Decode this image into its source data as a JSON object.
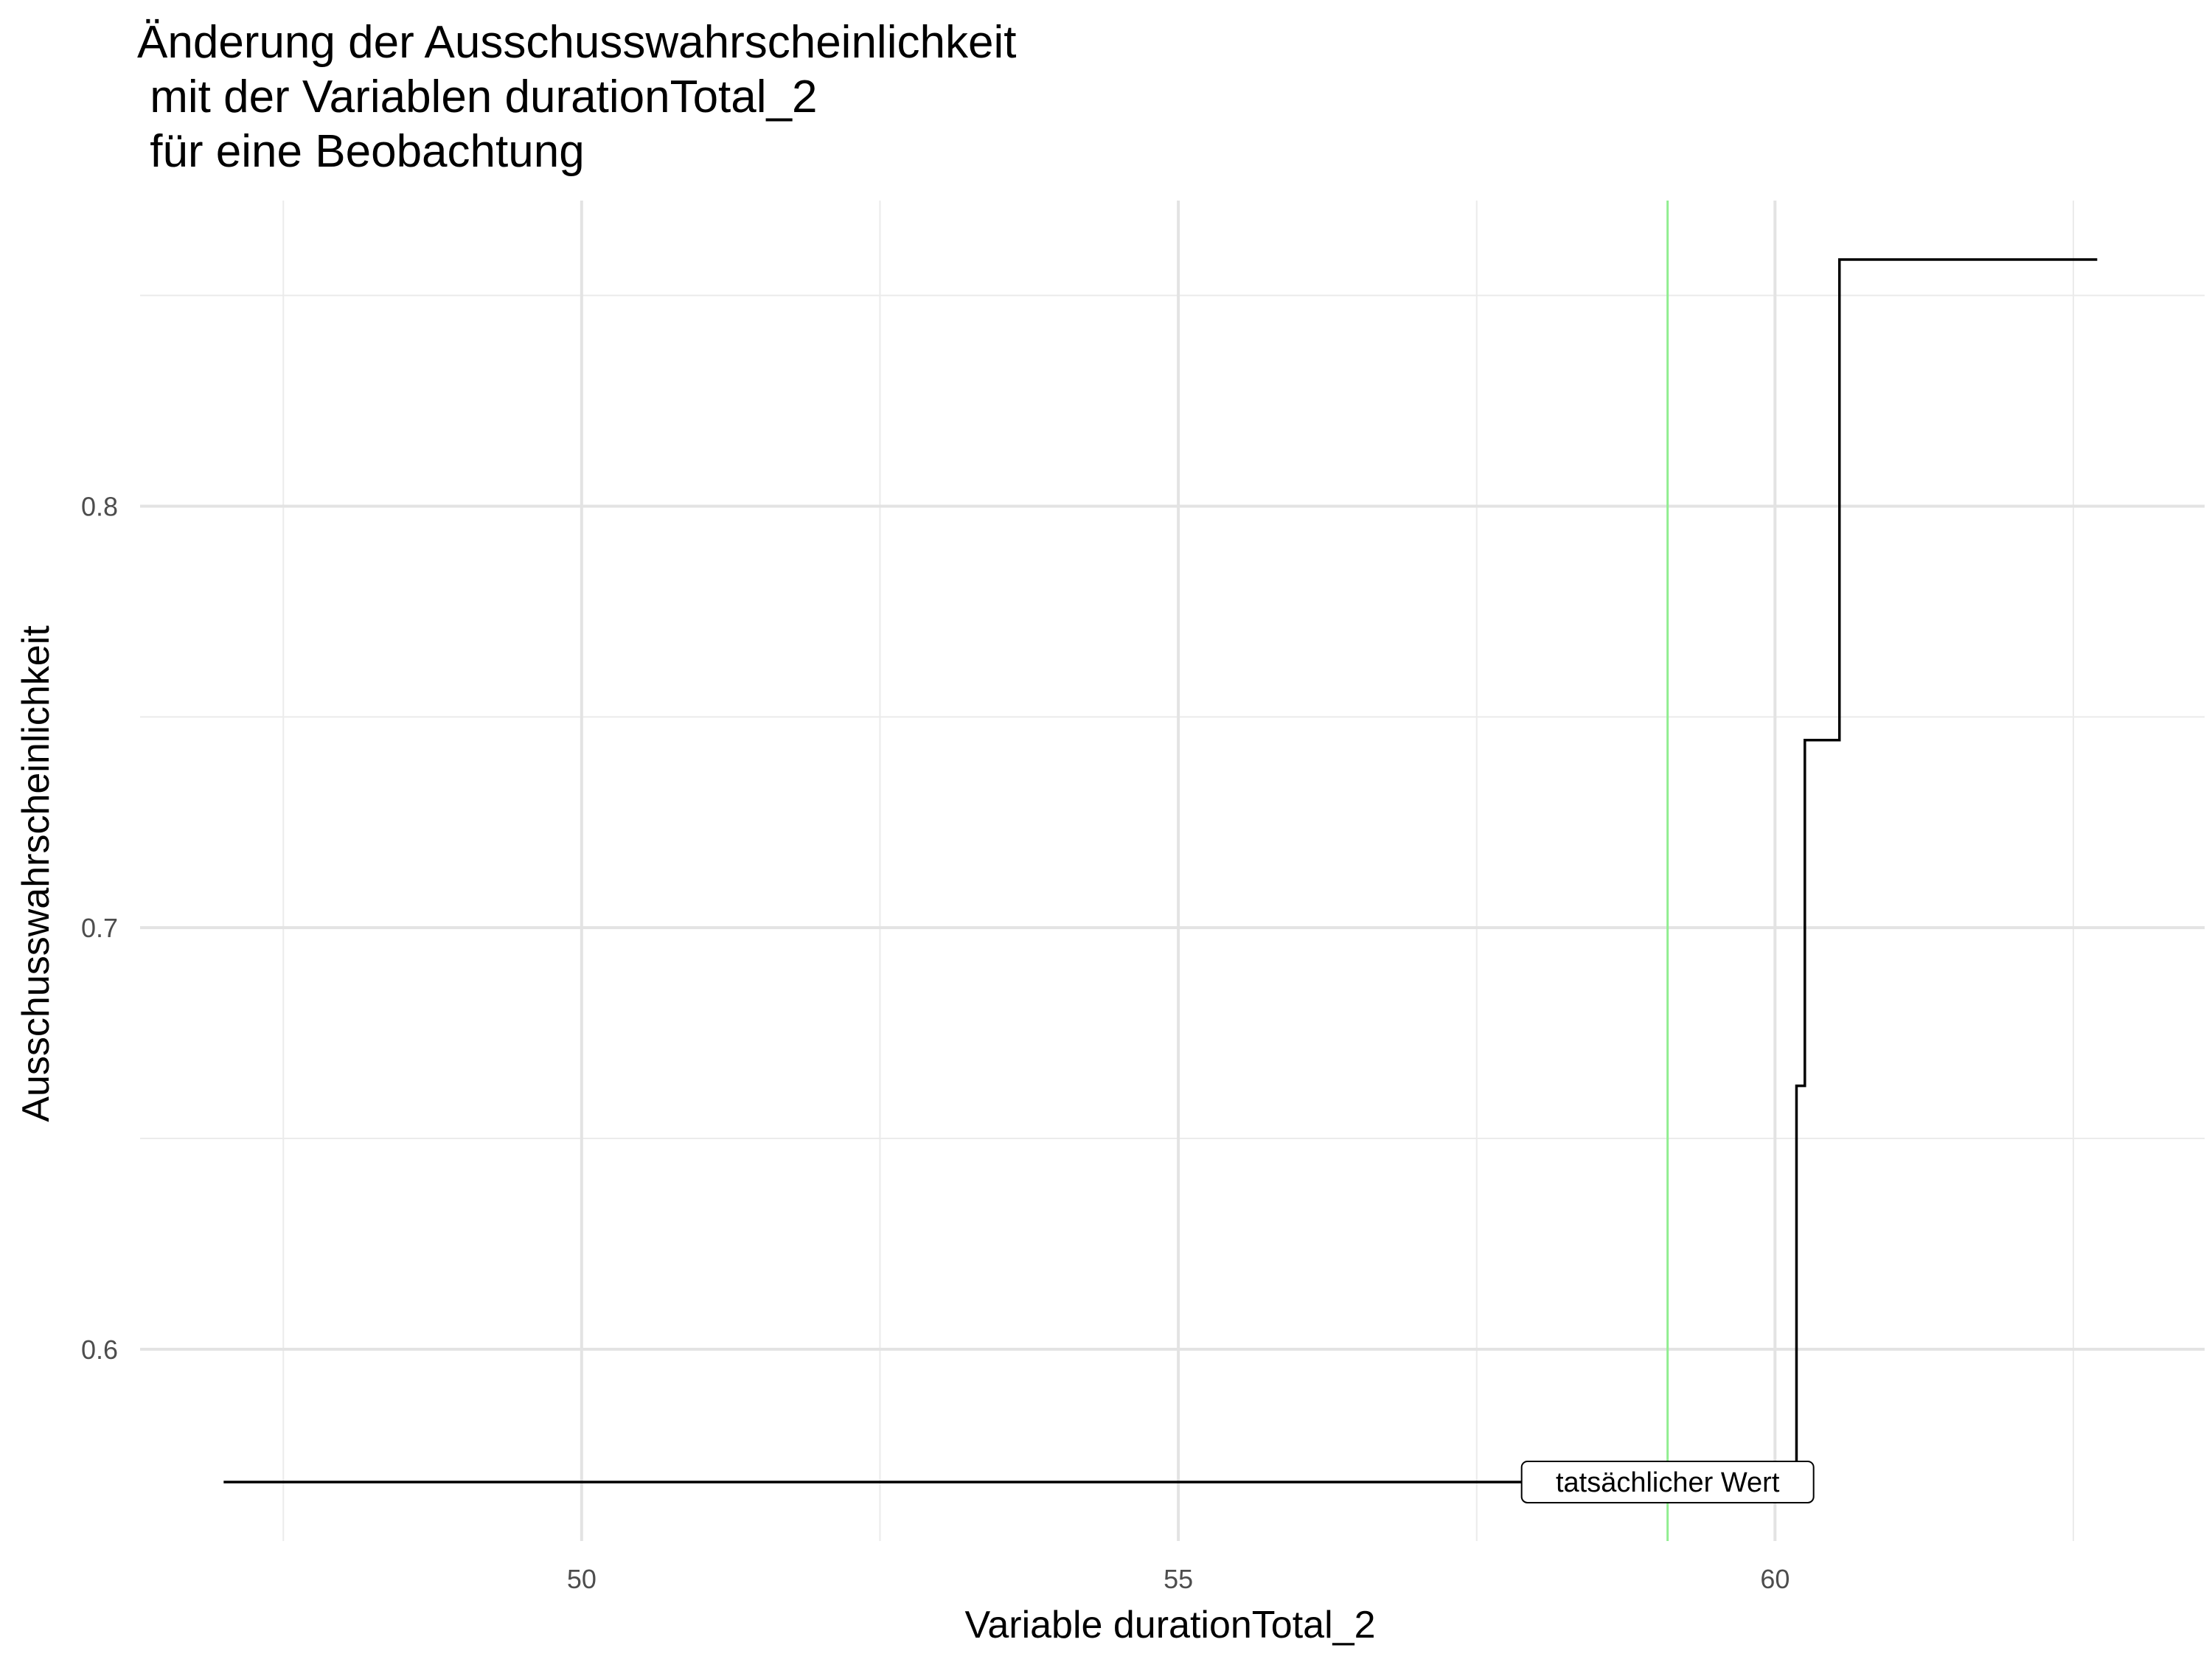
{
  "chart_data": {
    "type": "line",
    "title_lines": [
      "Änderung der Ausschusswahrscheinlichkeit",
      " mit der Variablen durationTotal_2",
      " für eine Beobachtung"
    ],
    "xlabel": "Variable durationTotal_2",
    "ylabel": "Ausschusswahrscheinlichkeit",
    "xlim": [
      46.3,
      63.6
    ],
    "ylim": [
      0.5545,
      0.8725
    ],
    "x_ticks": [
      50,
      55,
      60
    ],
    "x_tick_labels": [
      "50",
      "55",
      "60"
    ],
    "x_minor_ticks": [
      47.5,
      52.5,
      57.5,
      62.5
    ],
    "y_ticks": [
      0.6,
      0.7,
      0.8
    ],
    "y_tick_labels": [
      "0.6",
      "0.7",
      "0.8"
    ],
    "y_minor_ticks": [
      0.65,
      0.75,
      0.85
    ],
    "grid": true,
    "series": [
      {
        "step": true,
        "x": [
          47.0,
          60.18,
          60.18,
          60.25,
          60.25,
          60.54,
          60.54,
          62.7
        ],
        "y": [
          0.5685,
          0.5685,
          0.6625,
          0.6625,
          0.7445,
          0.7445,
          0.8585,
          0.8585
        ],
        "color": "#000000"
      }
    ],
    "reference_line": {
      "x": 59.1,
      "color": "#90ee90"
    },
    "annotation": {
      "text": "tatsächlicher Wert",
      "x": 59.1,
      "y": 0.5685
    }
  }
}
